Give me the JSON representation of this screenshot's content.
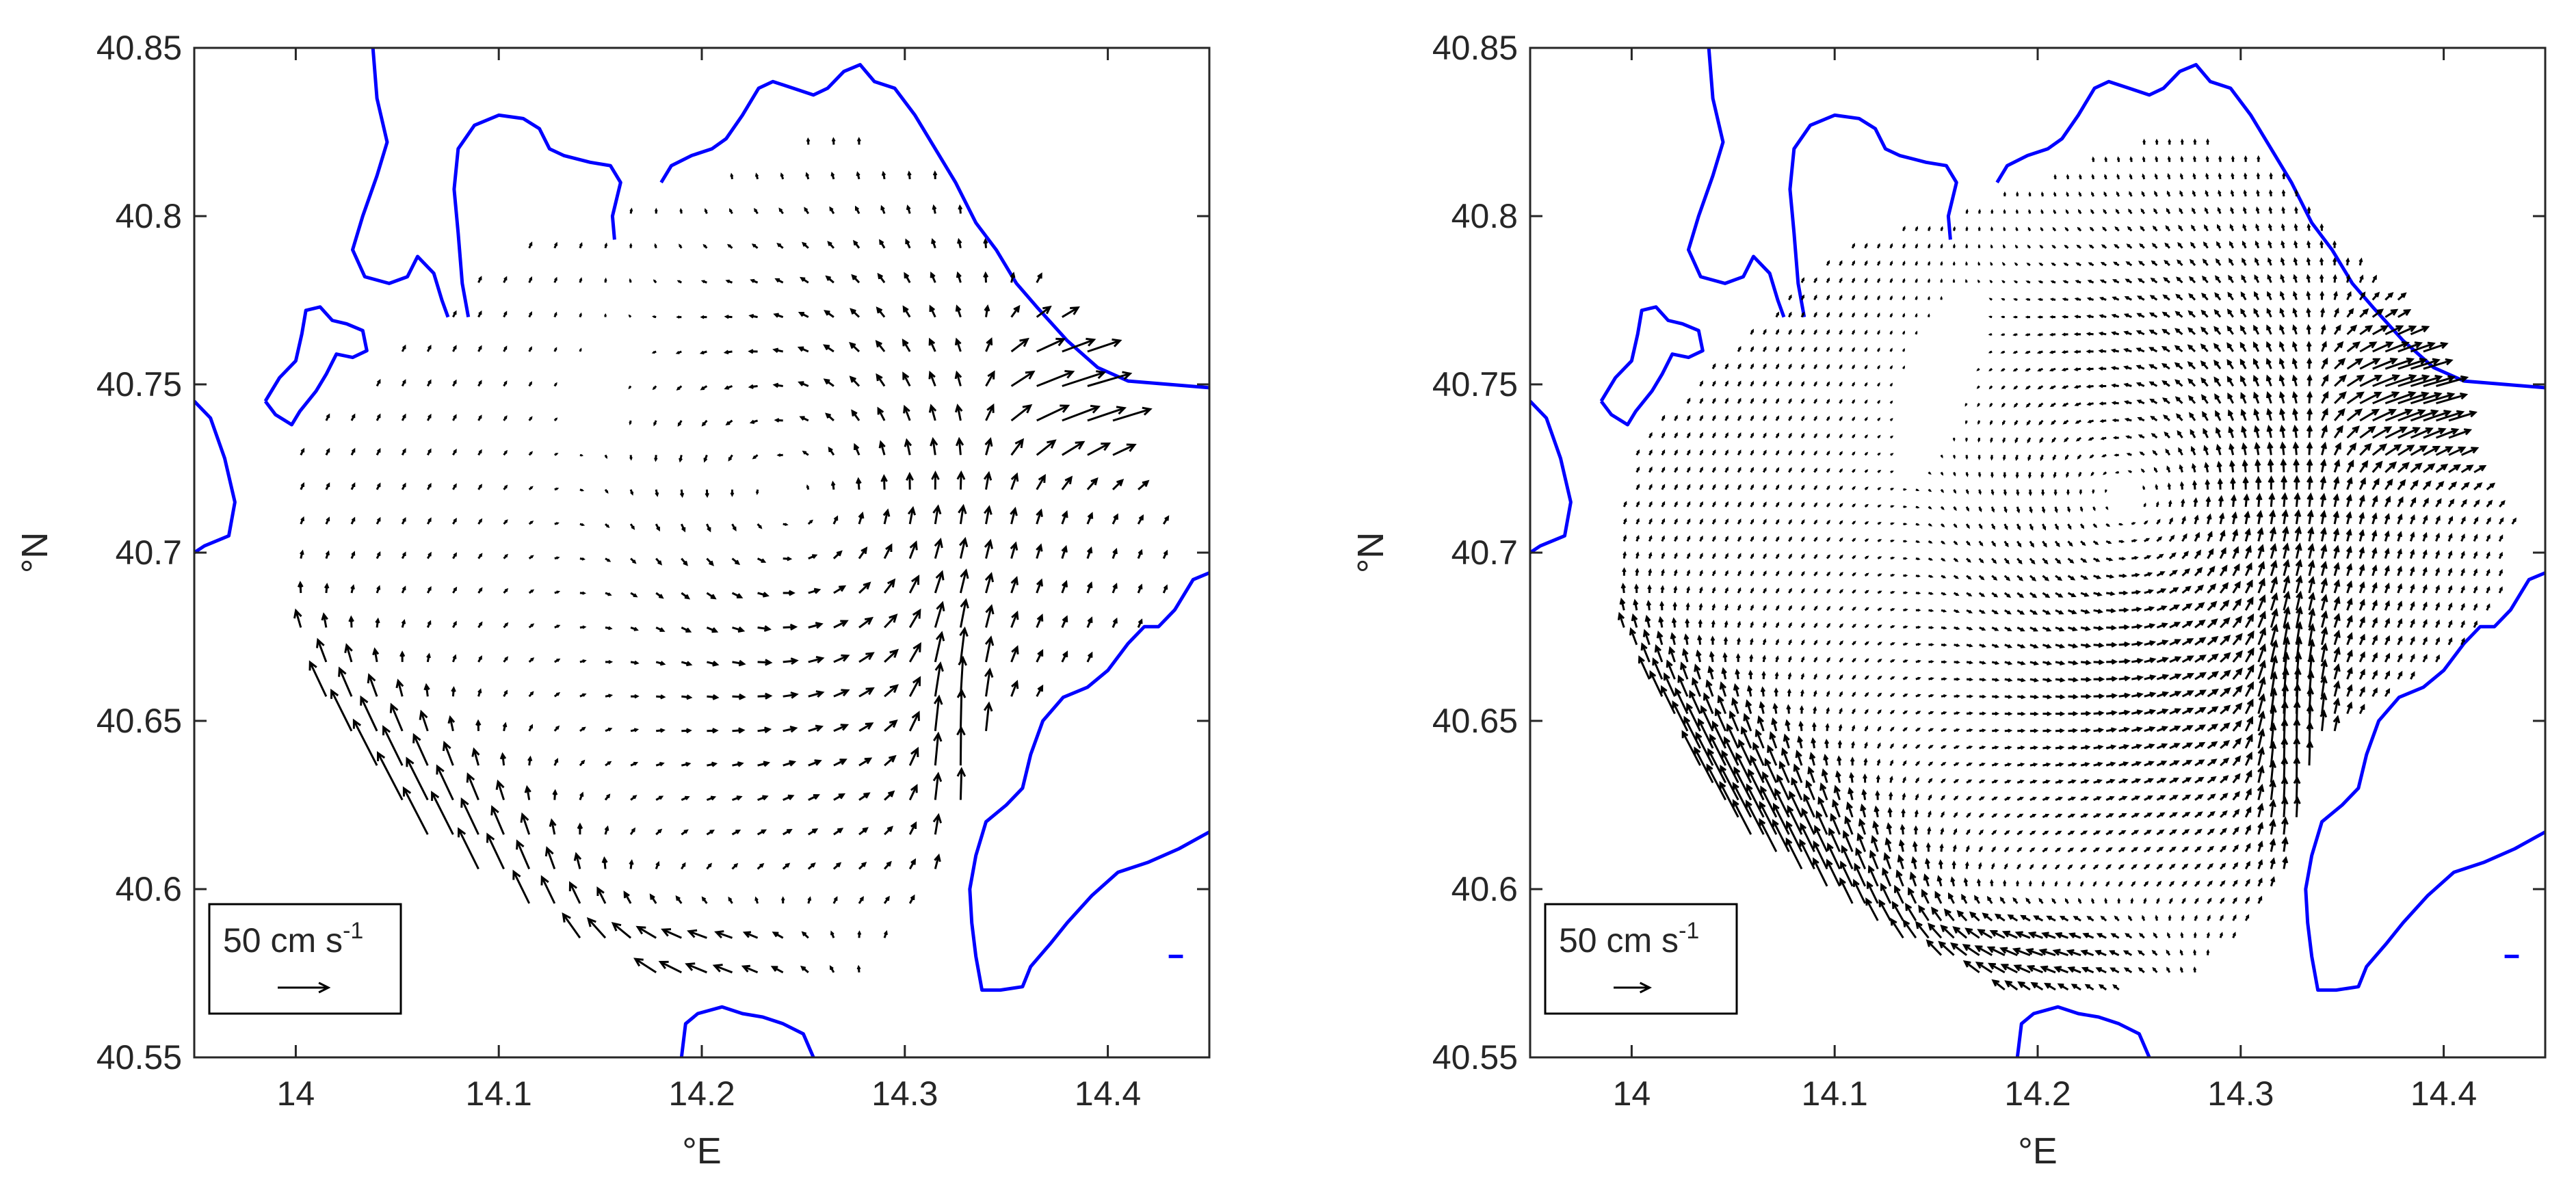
{
  "chart_data": [
    {
      "type": "vector-field",
      "xlabel": "°E",
      "ylabel": "°N",
      "xlim": [
        13.95,
        14.45
      ],
      "ylim": [
        40.55,
        40.85
      ],
      "xticks": [
        "14",
        "14.1",
        "14.2",
        "14.3",
        "14.4"
      ],
      "yticks": [
        "40.55",
        "40.6",
        "40.65",
        "40.7",
        "40.75",
        "40.8",
        "40.85"
      ],
      "grid": false,
      "legend": {
        "placement": "bottom-left",
        "value": "50",
        "unit": "cm s",
        "exponent": "-1"
      },
      "grid_step_deg": 0.0125,
      "coastline_color": "#0000ff",
      "arrow_color": "#000000",
      "features": [
        {
          "description": "cyclonic eddy",
          "center": [
            14.26,
            40.71
          ]
        },
        {
          "description": "strong north-westward flow",
          "region": [
            14.03,
            14.15,
            40.59,
            40.7
          ]
        },
        {
          "description": "strong eastward outflow",
          "region": [
            14.35,
            14.42,
            40.73,
            40.77
          ]
        },
        {
          "description": "convergent jet",
          "region": [
            14.31,
            14.35,
            40.62,
            40.67
          ]
        }
      ]
    },
    {
      "type": "vector-field",
      "xlabel": "°E",
      "ylabel": "°N",
      "xlim": [
        13.95,
        14.45
      ],
      "ylim": [
        40.55,
        40.85
      ],
      "xticks": [
        "14",
        "14.1",
        "14.2",
        "14.3",
        "14.4"
      ],
      "yticks": [
        "40.55",
        "40.6",
        "40.65",
        "40.7",
        "40.75",
        "40.8",
        "40.85"
      ],
      "grid": false,
      "legend": {
        "placement": "bottom-left",
        "value": "50",
        "unit": "cm s",
        "exponent": "-1"
      },
      "grid_step_deg": 0.00625,
      "coastline_color": "#0000ff",
      "arrow_color": "#000000",
      "features": [
        {
          "description": "cyclonic eddy",
          "center": [
            14.26,
            40.71
          ]
        },
        {
          "description": "strong north-westward flow",
          "region": [
            14.03,
            14.15,
            40.59,
            40.7
          ]
        },
        {
          "description": "strong eastward outflow",
          "region": [
            14.35,
            14.42,
            40.73,
            40.77
          ]
        },
        {
          "description": "convergent jet",
          "region": [
            14.31,
            14.35,
            40.62,
            40.67
          ]
        }
      ]
    }
  ]
}
